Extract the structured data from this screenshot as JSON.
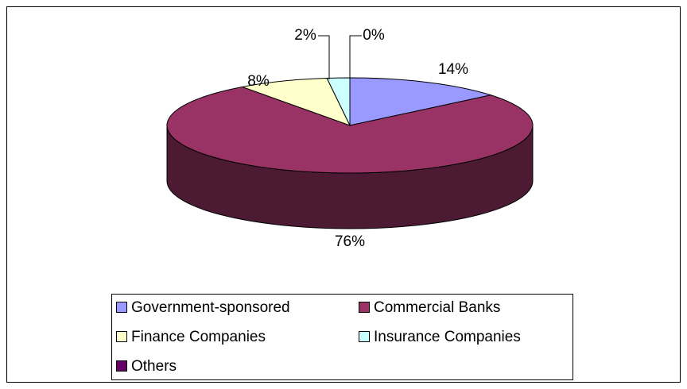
{
  "chart_data": {
    "type": "pie",
    "categories": [
      "Government-sponsored",
      "Commercial Banks",
      "Finance Companies",
      "Insurance Companies",
      "Others"
    ],
    "values": [
      14,
      76,
      8,
      2,
      0
    ],
    "value_labels": [
      "14%",
      "76%",
      "8%",
      "2%",
      "0%"
    ],
    "colors": [
      "#9999ff",
      "#993366",
      "#ffffcc",
      "#ccffff",
      "#660066"
    ],
    "legend": "bottom"
  }
}
